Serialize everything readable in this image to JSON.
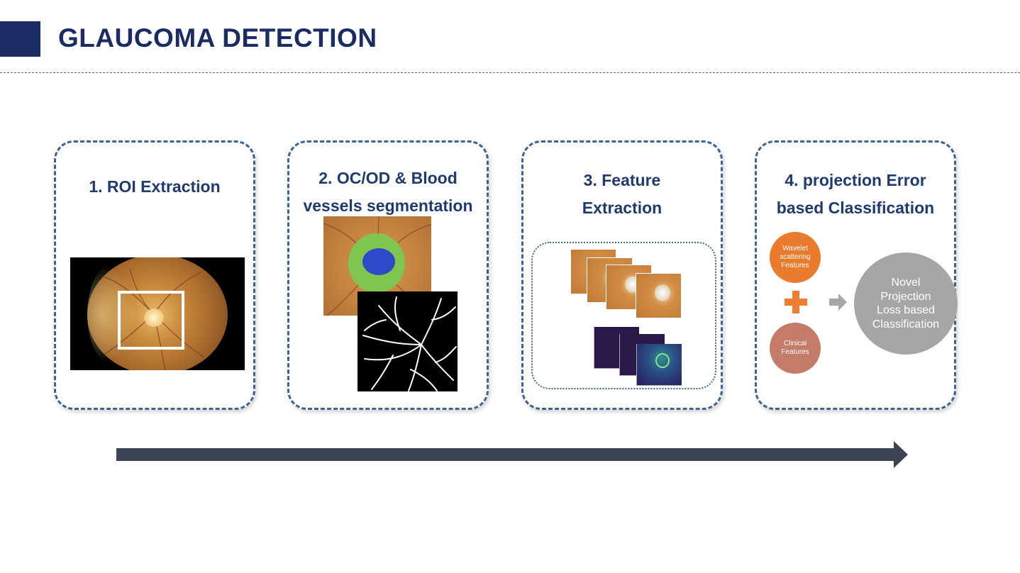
{
  "header": {
    "title": "GLAUCOMA DETECTION"
  },
  "colors": {
    "brand": "#1a2c63",
    "card_border": "#3d6490",
    "wavelet": "#ea7b2c",
    "clinical": "#c47b67",
    "result": "#a6a6a6",
    "arrow": "#3d4255"
  },
  "steps": [
    {
      "title_lines": [
        "1. ROI Extraction"
      ]
    },
    {
      "title_lines": [
        "2. OC/OD & Blood",
        "vessels segmentation"
      ]
    },
    {
      "title_lines": [
        "3. Feature",
        "Extraction"
      ]
    },
    {
      "title_lines": [
        "4. projection Error",
        "based Classification"
      ]
    }
  ],
  "classification": {
    "wavelet_label": [
      "Wavelet",
      "scattering",
      "Features"
    ],
    "clinical_label": [
      "Clinical",
      "Features"
    ],
    "result_label": [
      "Novel",
      "Projection",
      "Loss based",
      "Classification"
    ]
  },
  "icons": {
    "combine": "plus-icon",
    "flow": "arrow-right-icon"
  }
}
